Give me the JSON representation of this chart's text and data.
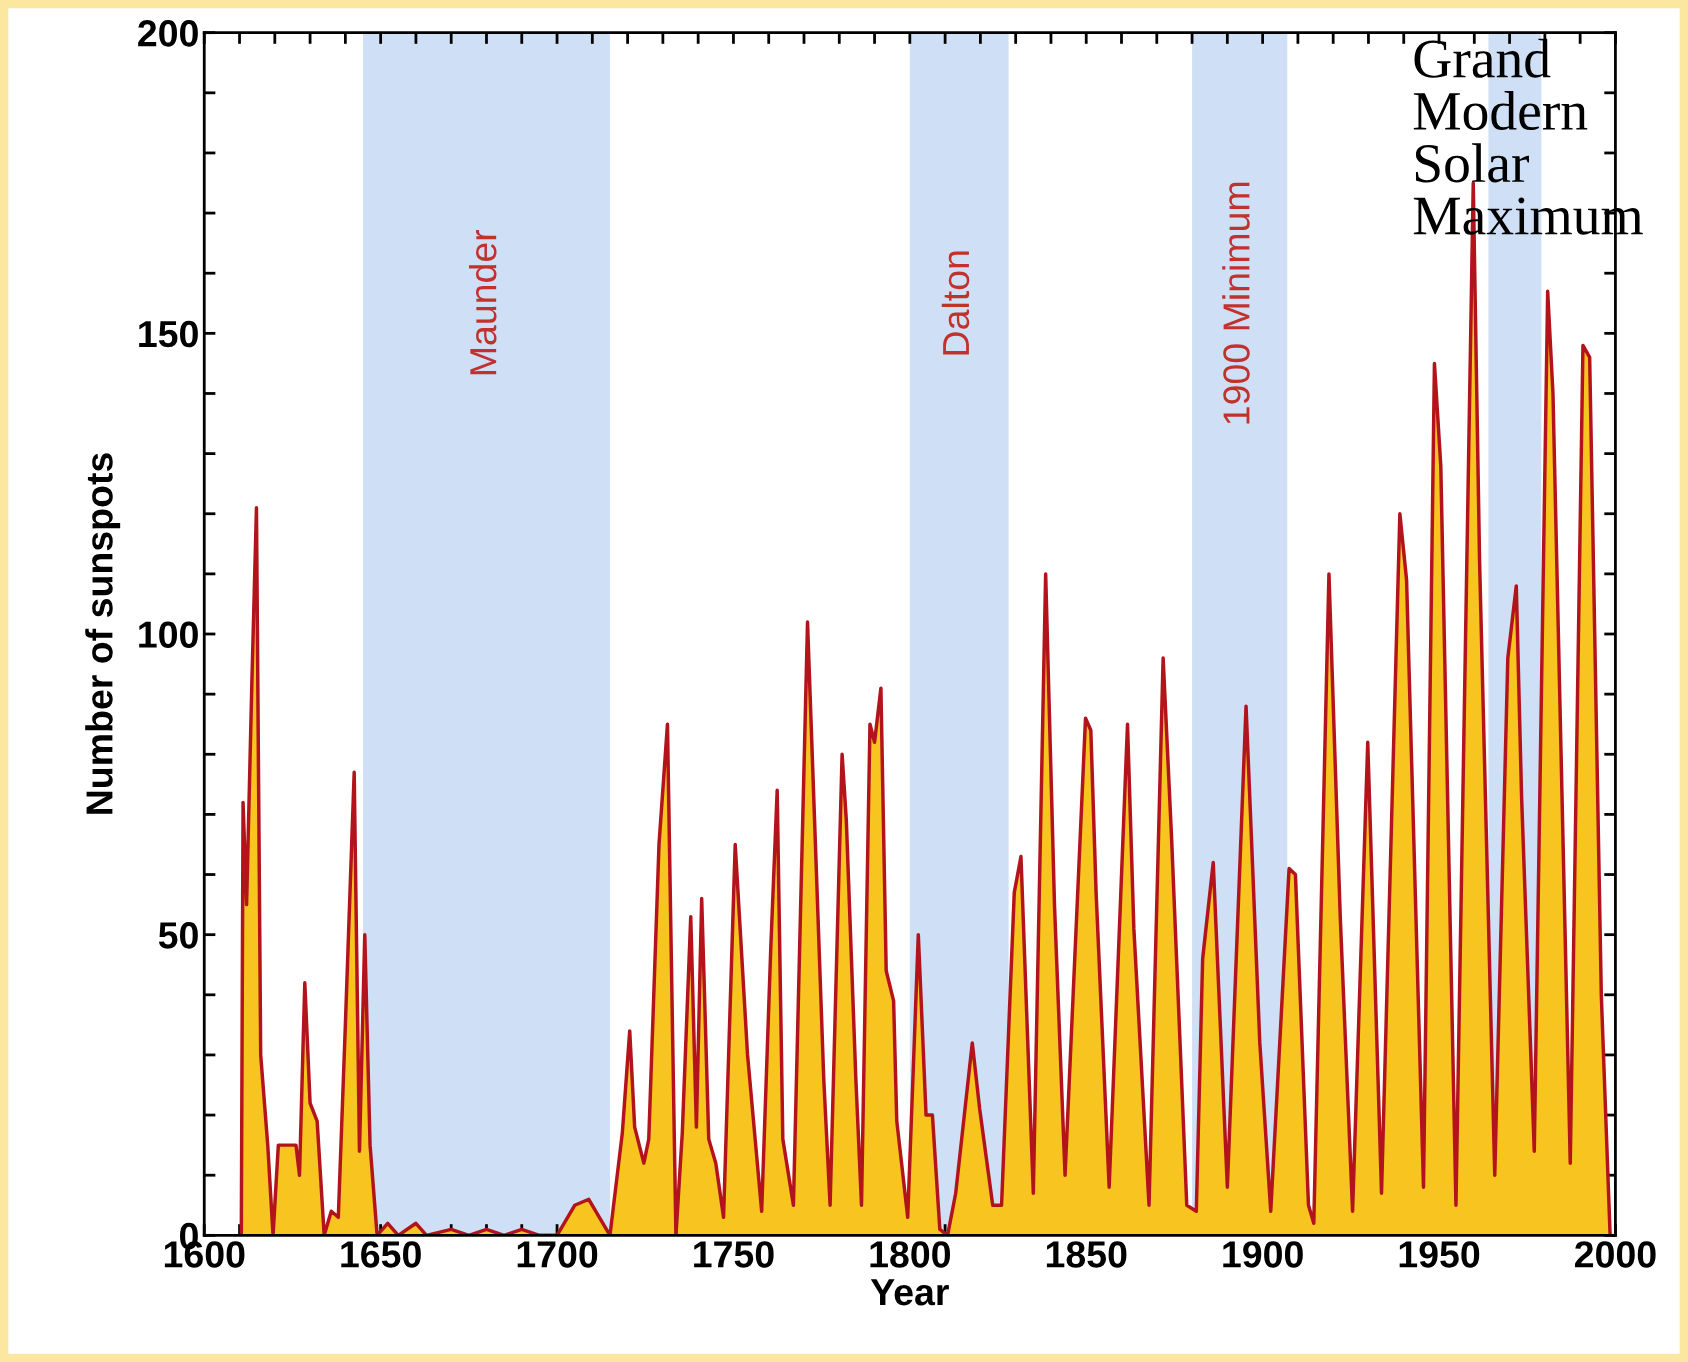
{
  "chart_data": {
    "type": "area",
    "xlabel": "Year",
    "ylabel": "Number of sunspots",
    "xlim": [
      1600,
      2000
    ],
    "ylim": [
      0,
      200
    ],
    "xticks": [
      1600,
      {
        "value": 1610,
        "label": null
      },
      {
        "value": 1620,
        "label": null
      },
      {
        "value": 1630,
        "label": null
      },
      {
        "value": 1640,
        "label": null
      },
      1650,
      {
        "value": 1660,
        "label": null
      },
      {
        "value": 1670,
        "label": null
      },
      {
        "value": 1680,
        "label": null
      },
      {
        "value": 1690,
        "label": null
      },
      1700,
      {
        "value": 1710,
        "label": null
      },
      {
        "value": 1720,
        "label": null
      },
      {
        "value": 1730,
        "label": null
      },
      {
        "value": 1740,
        "label": null
      },
      1750,
      {
        "value": 1760,
        "label": null
      },
      {
        "value": 1770,
        "label": null
      },
      {
        "value": 1780,
        "label": null
      },
      {
        "value": 1790,
        "label": null
      },
      1800,
      {
        "value": 1810,
        "label": null
      },
      {
        "value": 1820,
        "label": null
      },
      {
        "value": 1830,
        "label": null
      },
      {
        "value": 1840,
        "label": null
      },
      1850,
      {
        "value": 1860,
        "label": null
      },
      {
        "value": 1870,
        "label": null
      },
      {
        "value": 1880,
        "label": null
      },
      {
        "value": 1890,
        "label": null
      },
      1900,
      {
        "value": 1910,
        "label": null
      },
      {
        "value": 1920,
        "label": null
      },
      {
        "value": 1930,
        "label": null
      },
      {
        "value": 1940,
        "label": null
      },
      1950,
      {
        "value": 1960,
        "label": null
      },
      {
        "value": 1970,
        "label": null
      },
      {
        "value": 1980,
        "label": null
      },
      {
        "value": 1990,
        "label": null
      },
      2000
    ],
    "yticks": [
      0,
      {
        "value": 10,
        "label": null
      },
      {
        "value": 20,
        "label": null
      },
      {
        "value": 30,
        "label": null
      },
      {
        "value": 40,
        "label": null
      },
      50,
      {
        "value": 60,
        "label": null
      },
      {
        "value": 70,
        "label": null
      },
      {
        "value": 80,
        "label": null
      },
      {
        "value": 90,
        "label": null
      },
      100,
      {
        "value": 110,
        "label": null
      },
      {
        "value": 120,
        "label": null
      },
      {
        "value": 130,
        "label": null
      },
      {
        "value": 140,
        "label": null
      },
      150,
      {
        "value": 160,
        "label": null
      },
      {
        "value": 170,
        "label": null
      },
      {
        "value": 180,
        "label": null
      },
      {
        "value": 190,
        "label": null
      },
      200
    ],
    "bands": [
      {
        "axis": "x",
        "from": 1645,
        "to": 1715,
        "label": "Maunder",
        "color": "#cfe0f6"
      },
      {
        "axis": "x",
        "from": 1800,
        "to": 1828,
        "label": "Dalton",
        "color": "#cfe0f6"
      },
      {
        "axis": "x",
        "from": 1880,
        "to": 1907,
        "label": "1900 Minimum",
        "color": "#cfe0f6"
      },
      {
        "axis": "x",
        "from": 1964,
        "to": 1979,
        "color": "#cfe0f6"
      }
    ],
    "annotations": [
      "Grand\nModern\nSolar\nMaximum"
    ],
    "series": [
      {
        "color": "#f8c41f",
        "x": [
          1610.5,
          1611,
          1612,
          1613.5,
          1614.8,
          1616,
          1618,
          1619.5,
          1621,
          1626,
          1627,
          1628.5,
          1630,
          1632,
          1634,
          1636,
          1638,
          1640,
          1642.5,
          1644,
          1645.5,
          1647,
          1649,
          1652,
          1655,
          1660,
          1663,
          1670,
          1675,
          1680,
          1685,
          1690,
          1695,
          1700,
          1705,
          1709,
          1712,
          1715,
          1718.5,
          1720.6,
          1722,
          1724.6,
          1726,
          1728.9,
          1731.3,
          1733.7,
          1735.5,
          1737.9,
          1739.5,
          1741,
          1743,
          1745,
          1747.2,
          1750.5,
          1754,
          1758,
          1760.6,
          1762.4,
          1764,
          1767,
          1771,
          1775.6,
          1777.4,
          1780.8,
          1782,
          1784.7,
          1786.3,
          1788.7,
          1790,
          1791.8,
          1793.3,
          1795.4,
          1796.3,
          1799.4,
          1802.4,
          1804.6,
          1806.4,
          1808.5,
          1810.7,
          1813,
          1817.7,
          1819.8,
          1823.5,
          1826,
          1829.6,
          1831.5,
          1835,
          1838.5,
          1841,
          1844,
          1849.8,
          1851.3,
          1852.8,
          1856.5,
          1861.7,
          1863.5,
          1867.8,
          1871.8,
          1874.2,
          1878.5,
          1881.2,
          1883,
          1886,
          1890,
          1895.3,
          1899.2,
          1902.3,
          1907.5,
          1909.3,
          1913,
          1914.5,
          1918.8,
          1922,
          1925.5,
          1929.8,
          1933.7,
          1938.9,
          1940.8,
          1945.6,
          1948.7,
          1950.5,
          1954.8,
          1959.7,
          1961.5,
          1965.8,
          1969.5,
          1971.9,
          1973.4,
          1977,
          1980.8,
          1982.3,
          1987.2,
          1990.8,
          1992.7,
          1996,
          1998.5
        ],
        "values": [
          0,
          72,
          55,
          92,
          121,
          30,
          15,
          0,
          15,
          15,
          10,
          42,
          22,
          19,
          0,
          4,
          3,
          35,
          77,
          14,
          50,
          15,
          0,
          2,
          0,
          2,
          0,
          1,
          0,
          1,
          0,
          1,
          0,
          0,
          5,
          6,
          3,
          0,
          17,
          34,
          18,
          12,
          16,
          65,
          85,
          0,
          17,
          53,
          18,
          56,
          16,
          12,
          3,
          65,
          30,
          4,
          48,
          74,
          16,
          5,
          102,
          26,
          5,
          80,
          69,
          26,
          5,
          85,
          82,
          91,
          44,
          39,
          19,
          3,
          50,
          20,
          20,
          1,
          0,
          7,
          32,
          21,
          5,
          5,
          57,
          63,
          7,
          110,
          55,
          10,
          86,
          84,
          57,
          8,
          85,
          51,
          5,
          96,
          66,
          5,
          4,
          46,
          62,
          8,
          88,
          32,
          4,
          61,
          60,
          5,
          2,
          110,
          53,
          4,
          82,
          7,
          120,
          109,
          8,
          145,
          128,
          5,
          175,
          112,
          10,
          96,
          108,
          73,
          14,
          157,
          140,
          12,
          148,
          146,
          40,
          0
        ]
      }
    ]
  }
}
